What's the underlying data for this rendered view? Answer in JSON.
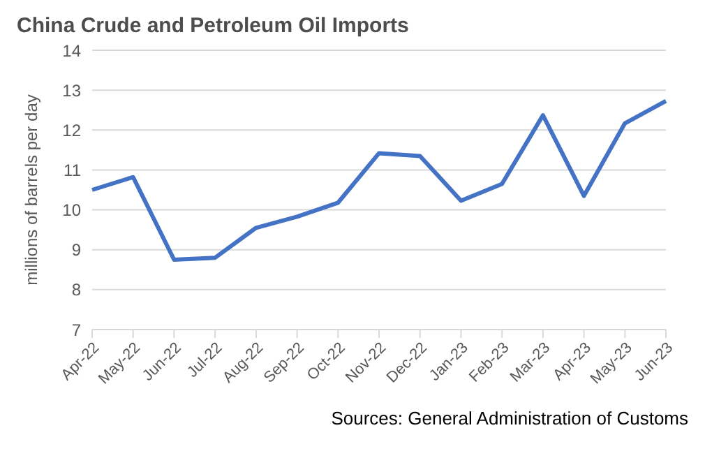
{
  "chart_data": {
    "type": "line",
    "title": "China Crude and Petroleum Oil Imports",
    "ylabel": "millions of barrels per day",
    "categories": [
      "Apr-22",
      "May-22",
      "Jun-22",
      "Jul-22",
      "Aug-22",
      "Sep-22",
      "Oct-22",
      "Nov-22",
      "Dec-22",
      "Jan-23",
      "Feb-23",
      "Mar-23",
      "Apr-23",
      "May-23",
      "Jun-23"
    ],
    "series": [
      {
        "color": "#4472c4",
        "values": [
          10.5,
          10.82,
          8.75,
          8.8,
          9.55,
          9.83,
          10.18,
          11.42,
          11.35,
          10.23,
          10.65,
          12.37,
          10.35,
          12.17,
          12.73
        ]
      }
    ],
    "ylim": [
      7,
      14
    ],
    "yticks": [
      7,
      8,
      9,
      10,
      11,
      12,
      13,
      14
    ],
    "grid": "y",
    "legend": false,
    "marker": "none",
    "line_style": "solid",
    "annotations": [
      "Sources: General Administration of Customs"
    ]
  }
}
